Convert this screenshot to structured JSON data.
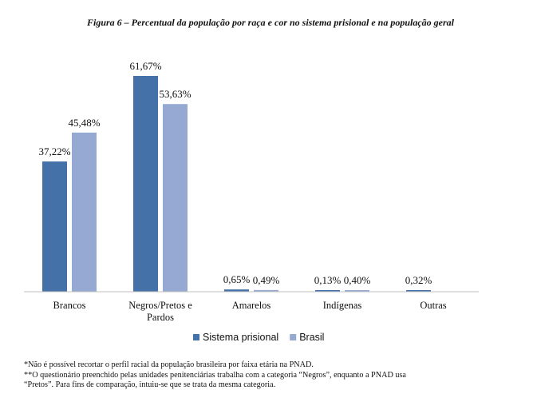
{
  "title": "Figura 6 – Percentual da população por raça e cor no sistema prisional e na população geral",
  "chart_data": {
    "type": "bar",
    "categories": [
      "Brancos",
      "Negros/Pretos e Pardos",
      "Amarelos",
      "Indígenas",
      "Outras"
    ],
    "category_lines": [
      [
        "Brancos"
      ],
      [
        "Negros/Pretos e",
        "Pardos"
      ],
      [
        "Amarelos"
      ],
      [
        "Indígenas"
      ],
      [
        "Outras"
      ]
    ],
    "series": [
      {
        "name": "Sistema prisional",
        "color": "#4472a8",
        "values": [
          37.22,
          61.67,
          0.65,
          0.13,
          0.32
        ],
        "labels": [
          "37,22%",
          "61,67%",
          "0,65%",
          "0,13%",
          "0,32%"
        ]
      },
      {
        "name": "Brasil",
        "color": "#95a9d3",
        "values": [
          45.48,
          53.63,
          0.49,
          0.4,
          null
        ],
        "labels": [
          "45,48%",
          "53,63%",
          "0,49%",
          "0,40%",
          null
        ]
      }
    ],
    "ylim": [
      0,
      70
    ],
    "grid": false,
    "legend": "bottom"
  },
  "footnotes": [
    "*Não é possível recortar o perfil racial da população brasileira por faixa etária na PNAD.",
    "**O questionário preenchido pelas unidades penitenciárias trabalha com a categoria “Negros”, enquanto a PNAD usa",
    "“Pretos”. Para fins de comparação, intuiu-se que se trata da mesma categoria."
  ]
}
